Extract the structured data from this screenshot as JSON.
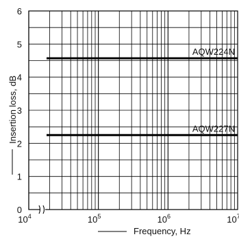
{
  "chart_data": {
    "type": "line",
    "title": "",
    "xlabel": "Frequency, Hz",
    "ylabel": "Insertion loss, dB",
    "x_scale": "log",
    "xlim": [
      10000,
      10000000
    ],
    "ylim": [
      0,
      6
    ],
    "grid": true,
    "x_tick_labels": [
      {
        "value": 10000,
        "base": "10",
        "exp": "4"
      },
      {
        "value": 100000,
        "base": "10",
        "exp": "5"
      },
      {
        "value": 1000000,
        "base": "10",
        "exp": "6"
      },
      {
        "value": 10000000,
        "base": "10",
        "exp": "7"
      }
    ],
    "y_ticks": [
      0,
      1,
      2,
      3,
      4,
      5,
      6
    ],
    "axis_break": "x-axis break near origin",
    "series": [
      {
        "name": "AQW224N",
        "x": [
          10000,
          10000000
        ],
        "y": [
          4.57,
          4.57
        ]
      },
      {
        "name": "AQW227N",
        "x": [
          10000,
          10000000
        ],
        "y": [
          2.25,
          2.25
        ]
      }
    ]
  }
}
